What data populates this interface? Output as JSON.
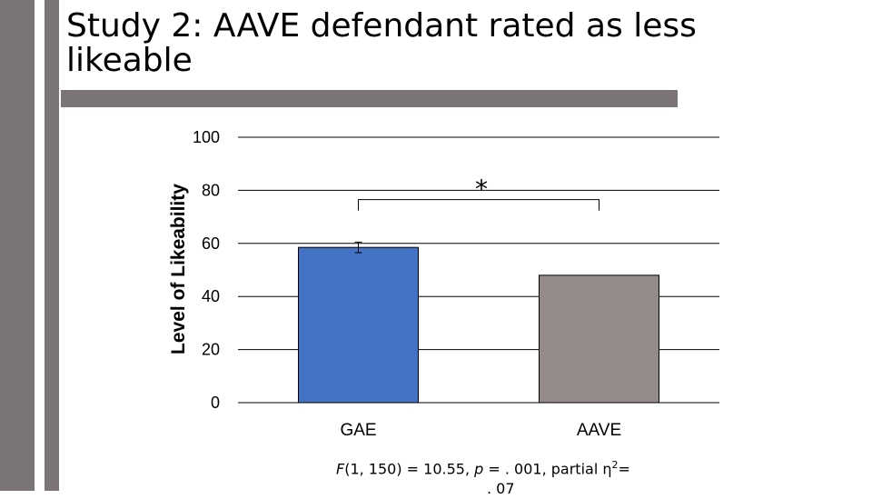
{
  "slide": {
    "title": "Study 2: AAVE defendant rated as less likeable",
    "stat_parts": [
      "F",
      "(1, 150) = 10.55, ",
      "p",
      " = . 001, partial η",
      "2",
      "=",
      ". 07"
    ]
  },
  "chart_data": {
    "type": "bar",
    "categories": [
      "GAE",
      "AAVE"
    ],
    "values": [
      58.5,
      48
    ],
    "error_bars": [
      {
        "category": "GAE",
        "low": 56.5,
        "high": 60.5
      }
    ],
    "colors": [
      "#4472c4",
      "#958b8a"
    ],
    "ylabel": "Level of Likeability",
    "ylim": [
      0,
      100
    ],
    "yticks": [
      "0",
      "20",
      "40",
      "60",
      "80",
      "100"
    ],
    "grid": true,
    "significance": {
      "between": [
        "GAE",
        "AAVE"
      ],
      "marker": "*",
      "at": 76.5
    }
  }
}
